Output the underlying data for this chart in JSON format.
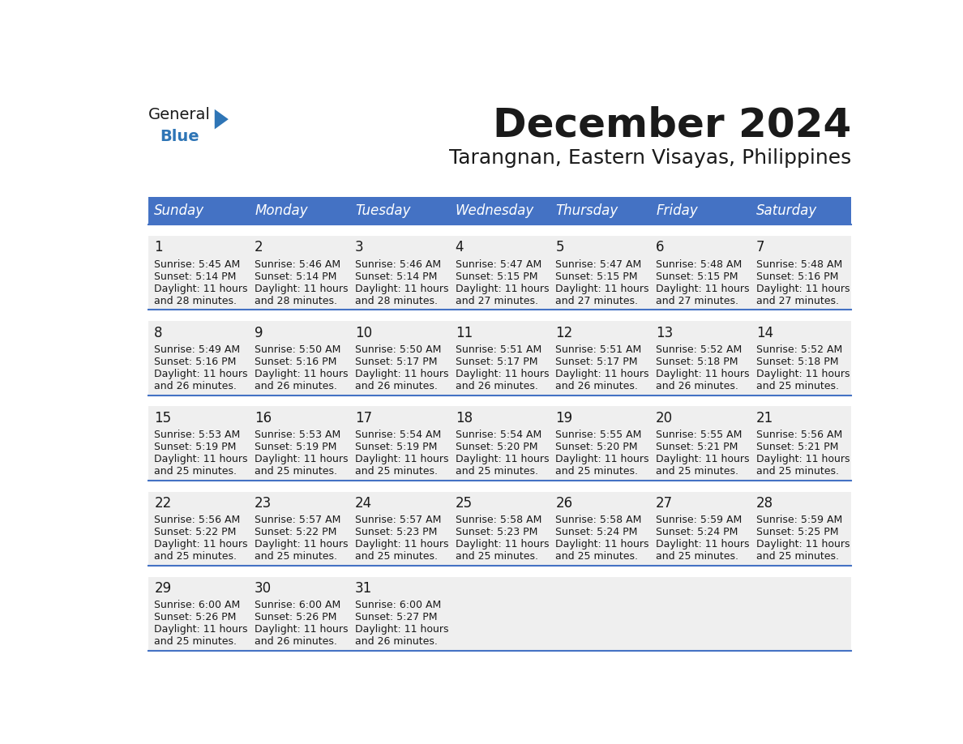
{
  "title": "December 2024",
  "subtitle": "Tarangnan, Eastern Visayas, Philippines",
  "header_bg": "#4472C4",
  "header_text": "#FFFFFF",
  "cell_bg": "#EFEFEF",
  "gap_bg": "#FFFFFF",
  "border_color": "#4472C4",
  "text_color": "#1a1a1a",
  "days_of_week": [
    "Sunday",
    "Monday",
    "Tuesday",
    "Wednesday",
    "Thursday",
    "Friday",
    "Saturday"
  ],
  "calendar_data": [
    [
      {
        "day": 1,
        "sunrise": "5:45 AM",
        "sunset": "5:14 PM",
        "daylight_min": "28"
      },
      {
        "day": 2,
        "sunrise": "5:46 AM",
        "sunset": "5:14 PM",
        "daylight_min": "28"
      },
      {
        "day": 3,
        "sunrise": "5:46 AM",
        "sunset": "5:14 PM",
        "daylight_min": "28"
      },
      {
        "day": 4,
        "sunrise": "5:47 AM",
        "sunset": "5:15 PM",
        "daylight_min": "27"
      },
      {
        "day": 5,
        "sunrise": "5:47 AM",
        "sunset": "5:15 PM",
        "daylight_min": "27"
      },
      {
        "day": 6,
        "sunrise": "5:48 AM",
        "sunset": "5:15 PM",
        "daylight_min": "27"
      },
      {
        "day": 7,
        "sunrise": "5:48 AM",
        "sunset": "5:16 PM",
        "daylight_min": "27"
      }
    ],
    [
      {
        "day": 8,
        "sunrise": "5:49 AM",
        "sunset": "5:16 PM",
        "daylight_min": "26"
      },
      {
        "day": 9,
        "sunrise": "5:50 AM",
        "sunset": "5:16 PM",
        "daylight_min": "26"
      },
      {
        "day": 10,
        "sunrise": "5:50 AM",
        "sunset": "5:17 PM",
        "daylight_min": "26"
      },
      {
        "day": 11,
        "sunrise": "5:51 AM",
        "sunset": "5:17 PM",
        "daylight_min": "26"
      },
      {
        "day": 12,
        "sunrise": "5:51 AM",
        "sunset": "5:17 PM",
        "daylight_min": "26"
      },
      {
        "day": 13,
        "sunrise": "5:52 AM",
        "sunset": "5:18 PM",
        "daylight_min": "26"
      },
      {
        "day": 14,
        "sunrise": "5:52 AM",
        "sunset": "5:18 PM",
        "daylight_min": "25"
      }
    ],
    [
      {
        "day": 15,
        "sunrise": "5:53 AM",
        "sunset": "5:19 PM",
        "daylight_min": "25"
      },
      {
        "day": 16,
        "sunrise": "5:53 AM",
        "sunset": "5:19 PM",
        "daylight_min": "25"
      },
      {
        "day": 17,
        "sunrise": "5:54 AM",
        "sunset": "5:19 PM",
        "daylight_min": "25"
      },
      {
        "day": 18,
        "sunrise": "5:54 AM",
        "sunset": "5:20 PM",
        "daylight_min": "25"
      },
      {
        "day": 19,
        "sunrise": "5:55 AM",
        "sunset": "5:20 PM",
        "daylight_min": "25"
      },
      {
        "day": 20,
        "sunrise": "5:55 AM",
        "sunset": "5:21 PM",
        "daylight_min": "25"
      },
      {
        "day": 21,
        "sunrise": "5:56 AM",
        "sunset": "5:21 PM",
        "daylight_min": "25"
      }
    ],
    [
      {
        "day": 22,
        "sunrise": "5:56 AM",
        "sunset": "5:22 PM",
        "daylight_min": "25"
      },
      {
        "day": 23,
        "sunrise": "5:57 AM",
        "sunset": "5:22 PM",
        "daylight_min": "25"
      },
      {
        "day": 24,
        "sunrise": "5:57 AM",
        "sunset": "5:23 PM",
        "daylight_min": "25"
      },
      {
        "day": 25,
        "sunrise": "5:58 AM",
        "sunset": "5:23 PM",
        "daylight_min": "25"
      },
      {
        "day": 26,
        "sunrise": "5:58 AM",
        "sunset": "5:24 PM",
        "daylight_min": "25"
      },
      {
        "day": 27,
        "sunrise": "5:59 AM",
        "sunset": "5:24 PM",
        "daylight_min": "25"
      },
      {
        "day": 28,
        "sunrise": "5:59 AM",
        "sunset": "5:25 PM",
        "daylight_min": "25"
      }
    ],
    [
      {
        "day": 29,
        "sunrise": "6:00 AM",
        "sunset": "5:26 PM",
        "daylight_min": "25"
      },
      {
        "day": 30,
        "sunrise": "6:00 AM",
        "sunset": "5:26 PM",
        "daylight_min": "26"
      },
      {
        "day": 31,
        "sunrise": "6:00 AM",
        "sunset": "5:27 PM",
        "daylight_min": "26"
      },
      null,
      null,
      null,
      null
    ]
  ],
  "logo_black_color": "#1a1a1a",
  "logo_blue_color": "#2E75B6",
  "logo_triangle_color": "#2E75B6",
  "title_fontsize": 36,
  "subtitle_fontsize": 18,
  "header_fontsize": 12,
  "day_num_fontsize": 12,
  "cell_text_fontsize": 9
}
